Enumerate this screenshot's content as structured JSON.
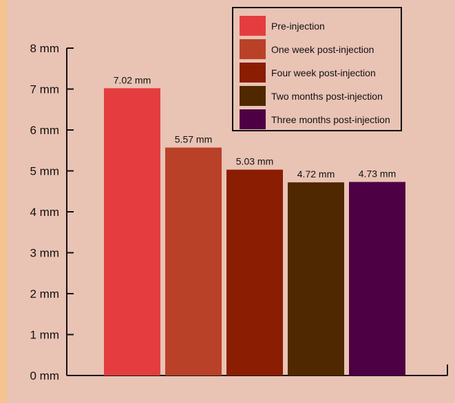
{
  "chart_data": {
    "type": "bar",
    "title": "",
    "xlabel": "",
    "ylabel": "",
    "ylim": [
      0,
      8
    ],
    "y_unit": "mm",
    "yticks": [
      "0 mm",
      "1 mm",
      "2 mm",
      "3 mm",
      "4 mm",
      "5 mm",
      "6 mm",
      "7 mm",
      "8 mm"
    ],
    "categories": [
      "Pre-injection",
      "One week post-injection",
      "Four week post-injection",
      "Two months post-injection",
      "Three months post-injection"
    ],
    "values": [
      7.02,
      5.57,
      5.03,
      4.72,
      4.73
    ],
    "value_labels": [
      "7.02 mm",
      "5.57 mm",
      "5.03 mm",
      "4.72 mm",
      "4.73 mm"
    ],
    "colors": [
      "#e53d3f",
      "#b94128",
      "#8a1d02",
      "#4f2700",
      "#4d0044"
    ],
    "legend_position": "top-right",
    "grid": false
  }
}
